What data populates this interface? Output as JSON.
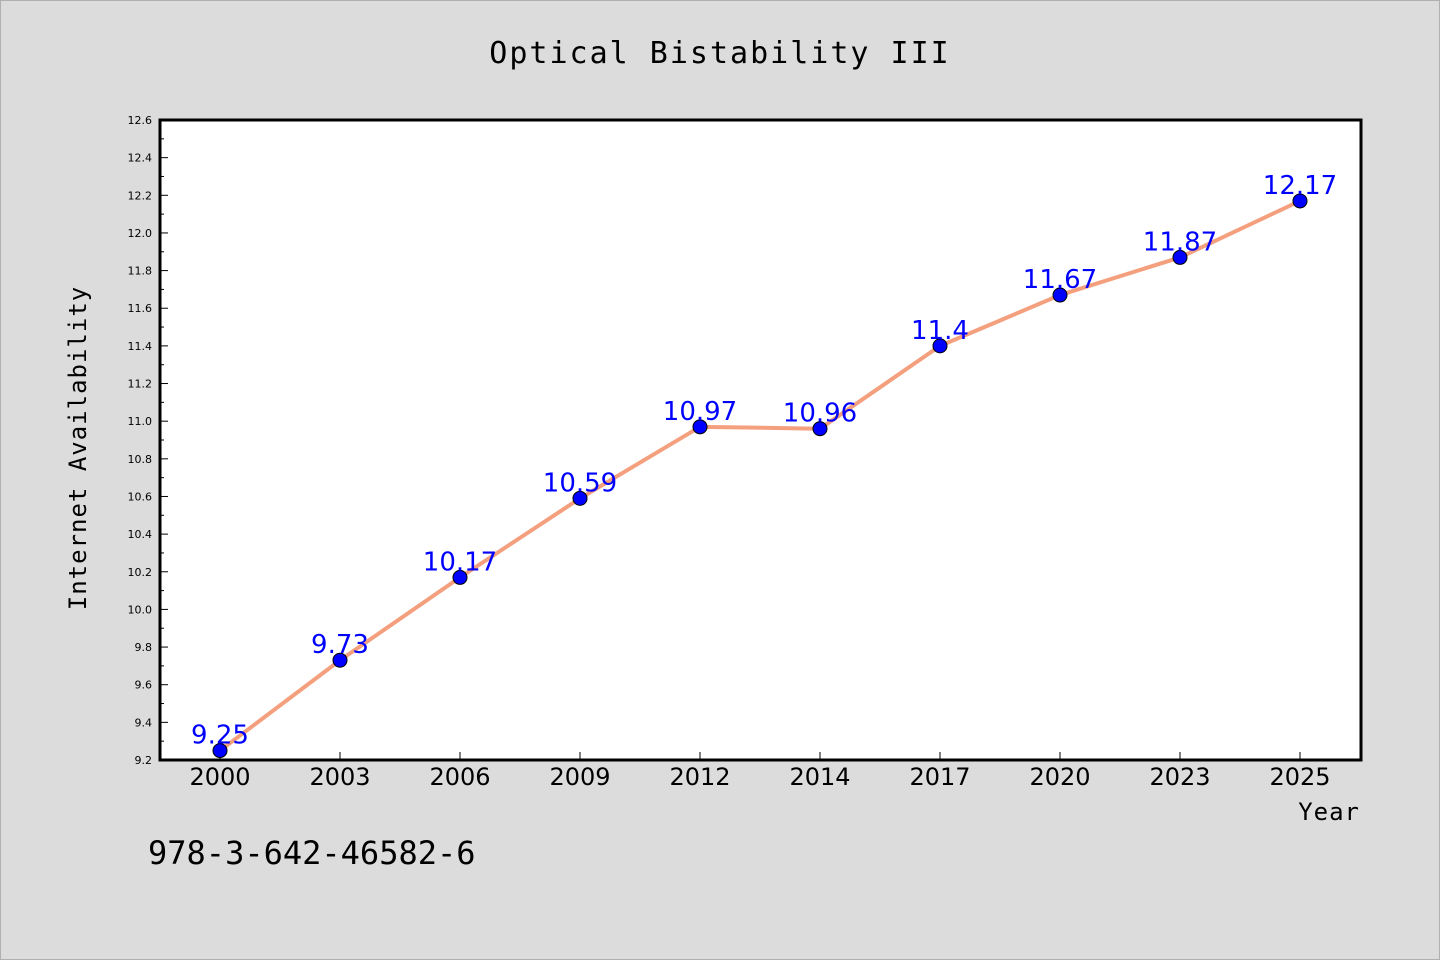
{
  "chart_data": {
    "type": "line",
    "title": "Optical Bistability III",
    "xlabel": "Year",
    "ylabel": "Internet Availability",
    "categories": [
      "2000",
      "2003",
      "2006",
      "2009",
      "2012",
      "2014",
      "2017",
      "2020",
      "2023",
      "2025"
    ],
    "series": [
      {
        "values": [
          9.25,
          9.73,
          10.17,
          10.59,
          10.97,
          10.96,
          11.4,
          11.67,
          11.87,
          12.17
        ],
        "data_labels": [
          "9.25",
          "9.73",
          "10.17",
          "10.59",
          "10.97",
          "10.96",
          "11.4",
          "11.67",
          "11.87",
          "12.17"
        ],
        "line_color": "#f4a07e",
        "marker_color": "#0000ff"
      }
    ],
    "ylim": [
      9.2,
      12.6
    ],
    "yticks": [
      "9.2",
      "9.4",
      "9.6",
      "9.8",
      "10.0",
      "10.2",
      "10.4",
      "10.6",
      "10.8",
      "11.0",
      "11.2",
      "11.4",
      "11.6",
      "11.8",
      "12.0",
      "12.2",
      "12.4",
      "12.6"
    ],
    "grid": false,
    "background": "#dcdcdc",
    "plot_background": "#ffffff"
  },
  "footer": {
    "isbn": "978-3-642-46582-6"
  }
}
